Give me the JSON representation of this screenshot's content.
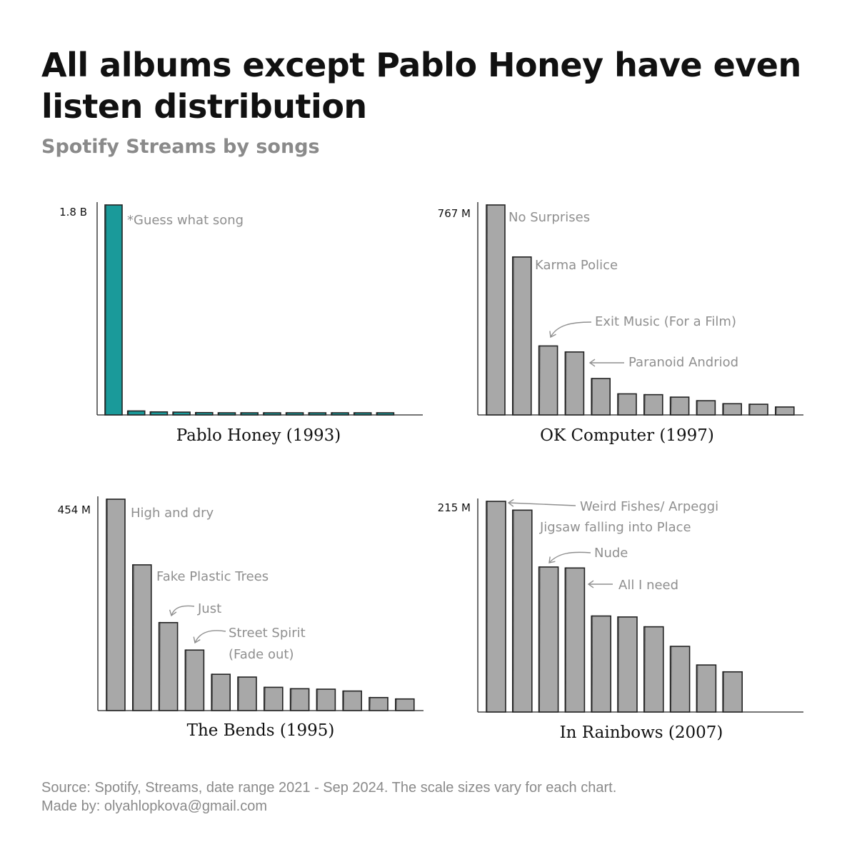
{
  "header": {
    "title": "All albums except Pablo Honey have even listen distribution",
    "subtitle": "Spotify Streams by songs"
  },
  "footer": {
    "source": "Source: Spotify, Streams, date range 2021 - Sep 2024. The scale sizes vary for each chart.",
    "author": "Made by: olyahlopkova@gmail.com"
  },
  "colors": {
    "highlight": "#1a9a9a",
    "bar": "#a8a8a8",
    "stroke": "#222222",
    "annotation": "#8f8f8f"
  },
  "chart_data": [
    {
      "type": "bar",
      "album": "Pablo Honey (1993)",
      "max_label": "1.8 B",
      "values": [
        1800,
        34,
        26,
        24,
        20,
        17,
        15,
        14,
        13,
        12,
        11,
        10,
        9
      ],
      "highlight": true,
      "annotations": [
        {
          "bar": 0,
          "text": "*Guess what song",
          "arrow": false
        }
      ]
    },
    {
      "type": "bar",
      "album": "OK Computer (1997)",
      "max_label": "767 M",
      "values": [
        767,
        577,
        252,
        230,
        133,
        77,
        74,
        65,
        52,
        41,
        39,
        29
      ],
      "highlight": false,
      "annotations": [
        {
          "bar": 0,
          "text": "No Surprises",
          "arrow": false
        },
        {
          "bar": 1,
          "text": "Karma Police",
          "arrow": false
        },
        {
          "bar": 2,
          "text": "Exit Music (For a Film)",
          "arrow": true
        },
        {
          "bar": 3,
          "text": "Paranoid Andriod",
          "arrow": true
        }
      ]
    },
    {
      "type": "bar",
      "album": "The Bends (1995)",
      "max_label": "454 M",
      "values": [
        454,
        313,
        189,
        130,
        78,
        72,
        50,
        47,
        46,
        42,
        28,
        25
      ],
      "highlight": false,
      "annotations": [
        {
          "bar": 0,
          "text": "High and dry",
          "arrow": false
        },
        {
          "bar": 1,
          "text": "Fake Plastic Trees",
          "arrow": false
        },
        {
          "bar": 2,
          "text": "Just",
          "arrow": true
        },
        {
          "bar": 3,
          "text": "Street Spirit",
          "text2": "(Fade out)",
          "arrow": true
        }
      ]
    },
    {
      "type": "bar",
      "album": "In Rainbows (2007)",
      "max_label": "215 M",
      "values": [
        215,
        206,
        148,
        147,
        98,
        97,
        87,
        67,
        48,
        41
      ],
      "highlight": false,
      "annotations": [
        {
          "bar": 0,
          "text": "Weird Fishes/ Arpeggi",
          "arrow": true
        },
        {
          "bar": 1,
          "text": "Jigsaw falling into Place",
          "arrow": false
        },
        {
          "bar": 2,
          "text": "Nude",
          "arrow": true
        },
        {
          "bar": 3,
          "text": "All I need",
          "arrow": true
        }
      ]
    }
  ]
}
